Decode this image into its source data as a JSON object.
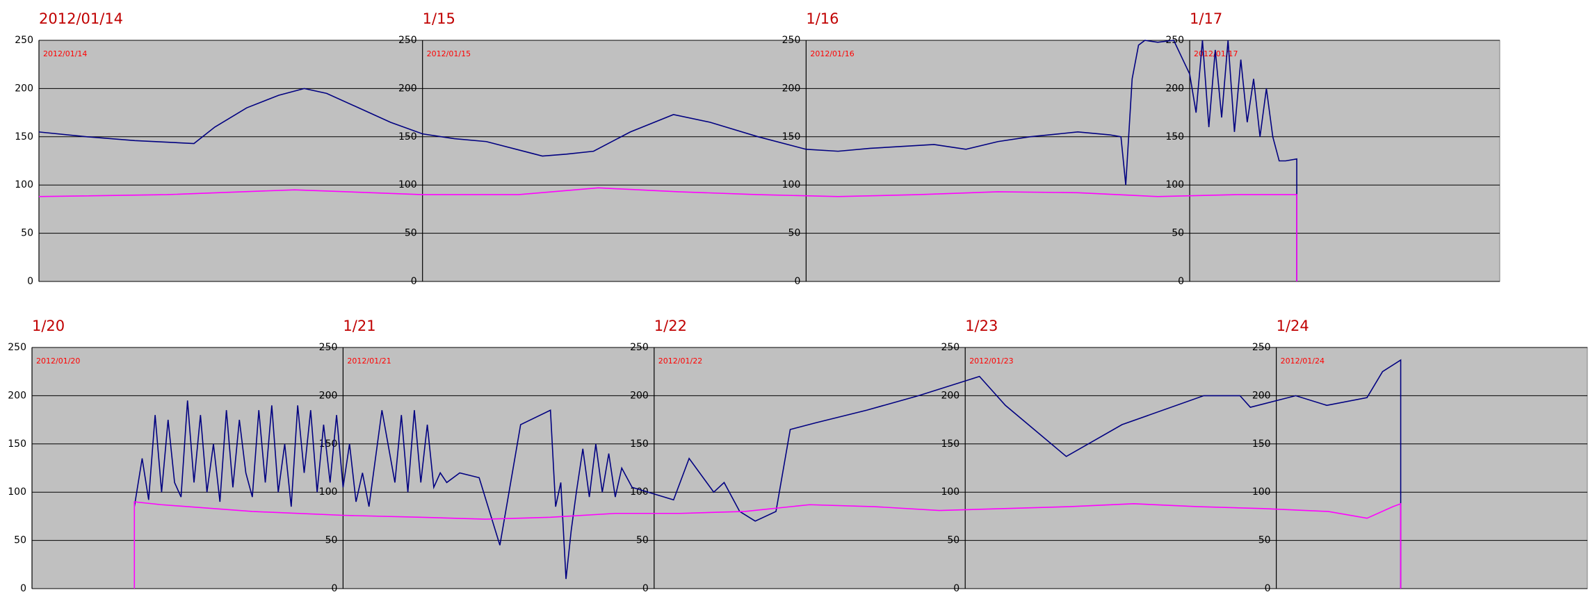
{
  "chart_data": [
    {
      "type": "line",
      "xlim": [
        0,
        91.4
      ],
      "ylim": [
        0,
        250
      ],
      "yticks": [
        0,
        50,
        100,
        150,
        200,
        250
      ],
      "grid": true,
      "xticks": [
        {
          "value": 0,
          "label": "2012/01/14"
        },
        {
          "value": 24,
          "label": "1/15"
        },
        {
          "value": 48,
          "label": "1/16"
        },
        {
          "value": 72,
          "label": "1/17"
        }
      ],
      "panel_labels": [
        "2012/01/14",
        "2012/01/15",
        "2012/01/16",
        "2012/01/17"
      ],
      "series": [
        {
          "color": "#000080",
          "x": [
            0,
            3,
            6,
            9.7,
            11,
            13,
            15,
            16.6,
            18,
            20,
            22,
            24,
            26,
            28,
            31.5,
            33,
            34.7,
            37,
            39.7,
            42,
            45,
            48,
            50,
            52,
            54,
            56,
            58,
            60,
            62,
            65,
            67,
            67.7,
            68,
            68.4,
            68.8,
            69.2,
            70,
            71,
            72,
            72.4,
            72.8,
            73.2,
            73.6,
            74,
            74.4,
            74.8,
            75.2,
            75.6,
            76,
            76.4,
            76.8,
            77.2,
            77.6,
            78,
            78.7,
            78.7
          ],
          "values": [
            155,
            150,
            146,
            143,
            160,
            180,
            193,
            200,
            195,
            180,
            165,
            153,
            148,
            145,
            130,
            132,
            135,
            155,
            173,
            165,
            150,
            137,
            135,
            138,
            140,
            142,
            137,
            145,
            150,
            155,
            152,
            150,
            100,
            210,
            245,
            250,
            248,
            250,
            215,
            175,
            250,
            160,
            240,
            170,
            250,
            155,
            230,
            165,
            210,
            150,
            200,
            150,
            125,
            125,
            127,
            0
          ]
        },
        {
          "color": "#ff00ff",
          "x": [
            0,
            8,
            16,
            24,
            30,
            35,
            40,
            45,
            50,
            55,
            60,
            65,
            70,
            75,
            78.7,
            78.7
          ],
          "values": [
            88,
            90,
            95,
            90,
            90,
            97,
            93,
            90,
            88,
            90,
            93,
            92,
            88,
            90,
            90,
            0
          ]
        }
      ]
    },
    {
      "type": "line",
      "xlim": [
        0,
        120
      ],
      "ylim": [
        0,
        250
      ],
      "yticks": [
        0,
        50,
        100,
        150,
        200,
        250
      ],
      "grid": true,
      "xticks": [
        {
          "value": 0,
          "label": "1/20"
        },
        {
          "value": 24,
          "label": "1/21"
        },
        {
          "value": 48,
          "label": "1/22"
        },
        {
          "value": 72,
          "label": "1/23"
        },
        {
          "value": 96,
          "label": "1/24"
        }
      ],
      "panel_labels": [
        "2012/01/20",
        "2012/01/21",
        "2012/01/22",
        "2012/01/23",
        "2012/01/24"
      ],
      "series": [
        {
          "color": "#000080",
          "x": [
            7.9,
            8.5,
            9,
            9.5,
            10,
            10.5,
            11,
            11.5,
            12,
            12.5,
            13,
            13.5,
            14,
            14.5,
            15,
            15.5,
            16,
            16.5,
            17,
            17.5,
            18,
            18.5,
            19,
            19.5,
            20,
            20.5,
            21,
            21.5,
            22,
            22.5,
            23,
            23.5,
            24,
            24.5,
            25,
            25.5,
            26,
            27,
            28,
            28.5,
            29,
            29.5,
            30,
            30.5,
            31,
            31.5,
            32,
            33,
            34.5,
            36.1,
            37.7,
            40,
            40.4,
            40.8,
            41.2,
            41.6,
            42,
            42.5,
            43,
            43.5,
            44,
            44.5,
            45,
            45.5,
            46.3,
            49.5,
            50.7,
            52.6,
            53.4,
            54.6,
            55.8,
            57.4,
            58.5,
            60.5,
            64.4,
            68.4,
            73.1,
            75.1,
            79.8,
            84.1,
            90.4,
            93.2,
            94,
            97.5,
            99.9,
            103,
            104.2,
            105.6,
            105.6
          ],
          "values": [
            85,
            135,
            92,
            180,
            100,
            175,
            110,
            95,
            195,
            110,
            180,
            100,
            150,
            90,
            185,
            105,
            175,
            120,
            95,
            185,
            110,
            190,
            100,
            150,
            85,
            190,
            120,
            185,
            100,
            170,
            110,
            180,
            105,
            150,
            90,
            120,
            85,
            185,
            110,
            180,
            100,
            185,
            110,
            170,
            105,
            120,
            110,
            120,
            115,
            45,
            170,
            185,
            85,
            110,
            10,
            60,
            100,
            145,
            95,
            150,
            100,
            140,
            95,
            125,
            105,
            92,
            135,
            100,
            110,
            80,
            70,
            80,
            165,
            172,
            185,
            200,
            220,
            190,
            137,
            170,
            200,
            200,
            188,
            200,
            190,
            198,
            225,
            237,
            0
          ]
        },
        {
          "color": "#ff00ff",
          "x": [
            7.9,
            7.9,
            10,
            17,
            24,
            30,
            35,
            40,
            45,
            50,
            55,
            60,
            65,
            70,
            75,
            80,
            85,
            90,
            95,
            100,
            103,
            105,
            105.6,
            105.6
          ],
          "values": [
            0,
            90,
            87,
            80,
            76,
            74,
            72,
            74,
            78,
            78,
            80,
            87,
            85,
            81,
            83,
            85,
            88,
            85,
            83,
            80,
            73,
            85,
            88,
            0
          ]
        }
      ]
    }
  ]
}
